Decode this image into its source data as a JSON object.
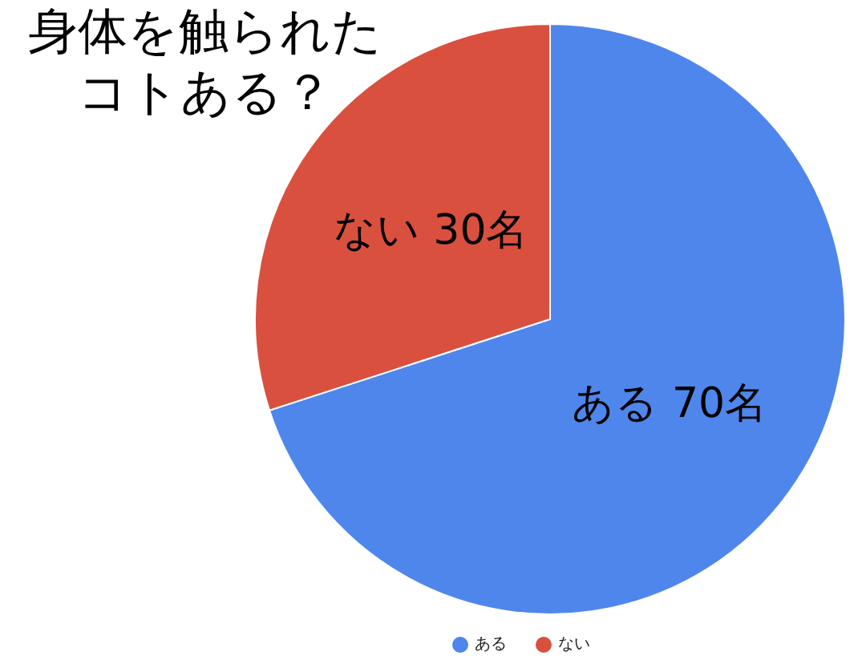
{
  "chart_data": {
    "type": "pie",
    "title": "身体を触られたコトある？",
    "categories": [
      "ある",
      "ない"
    ],
    "values": [
      70,
      30
    ],
    "colors": [
      "#4f86ec",
      "#d9503f"
    ],
    "value_labels": [
      "ある 70名",
      "ない 30名"
    ],
    "legend": "bottom"
  }
}
